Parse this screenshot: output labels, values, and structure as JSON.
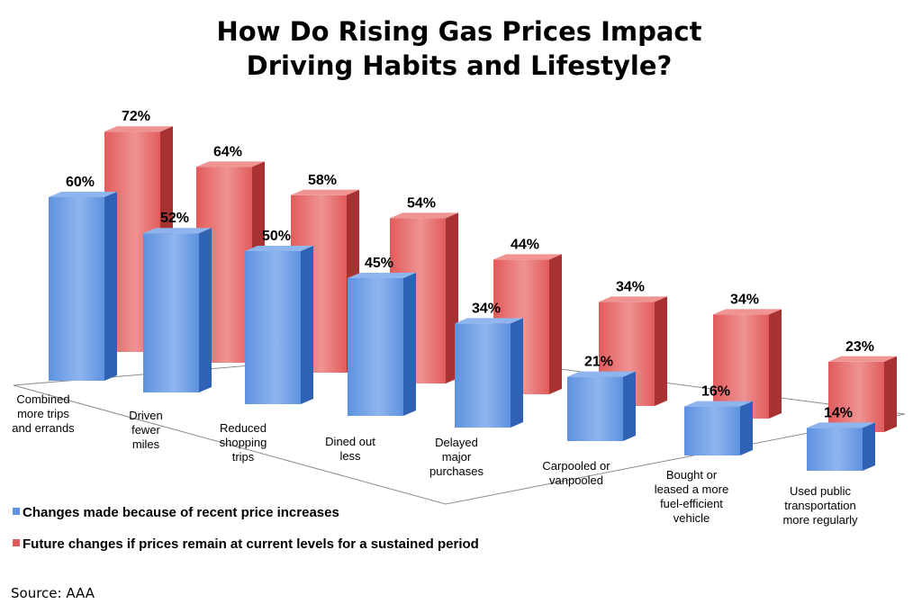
{
  "colors": {
    "blue_front": "#5d92e0",
    "blue_side": "#2f62b5",
    "blue_top": "#8fb5ee",
    "red_front": "#e25b5b",
    "red_side": "#a83232",
    "red_top": "#ef9393",
    "floor_edge": "#8c8c8c"
  },
  "chart_data": {
    "type": "bar",
    "title_lines": [
      "How Do Rising Gas Prices Impact",
      "Driving Habits and Lifestyle?"
    ],
    "categories": [
      [
        "Combined",
        "more trips",
        "and errands"
      ],
      [
        "Driven",
        "fewer",
        "miles"
      ],
      [
        "Reduced",
        "shopping",
        "trips"
      ],
      [
        "Dined out",
        "less"
      ],
      [
        "Delayed",
        "major",
        "purchases"
      ],
      [
        "Carpooled or",
        "vanpooled"
      ],
      [
        "Bought or",
        "leased a more",
        "fuel-efficient",
        "vehicle"
      ],
      [
        "Used public",
        "transportation",
        "more regularly"
      ]
    ],
    "series": [
      {
        "name": "Changes made because of recent price increases",
        "values": [
          60,
          52,
          50,
          45,
          34,
          21,
          16,
          14
        ],
        "labels": [
          "60%",
          "52%",
          "50%",
          "45%",
          "34%",
          "21%",
          "16%",
          "14%"
        ]
      },
      {
        "name": "Future changes if prices remain at current levels for a sustained period",
        "values": [
          72,
          64,
          58,
          54,
          44,
          34,
          34,
          23
        ],
        "labels": [
          "72%",
          "64%",
          "58%",
          "54%",
          "44%",
          "34%",
          "34%",
          "23%"
        ]
      }
    ],
    "value_unit": "%",
    "ylim": [
      0,
      80
    ],
    "grid": false,
    "legend_position": "bottom-left",
    "source": "Source: AAA"
  }
}
